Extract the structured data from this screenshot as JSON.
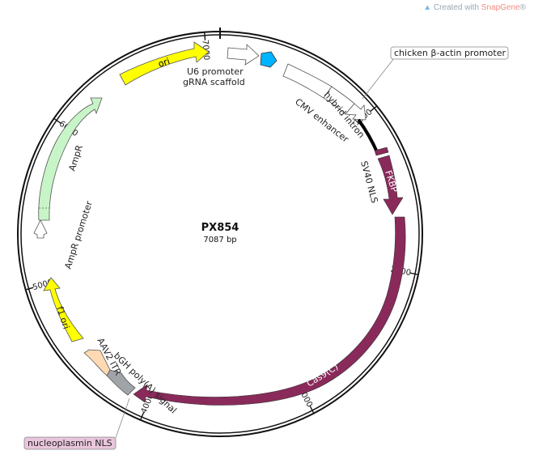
{
  "watermark": {
    "prefix": "Created with ",
    "brand": "SnapGene",
    "reg": "®"
  },
  "plasmid": {
    "name": "PX854",
    "length_label": "7087 bp",
    "length": 7087
  },
  "ticks": [
    {
      "pos": 1000,
      "label": "1000"
    },
    {
      "pos": 2000,
      "label": "2000"
    },
    {
      "pos": 3000,
      "label": "3000"
    },
    {
      "pos": 4000,
      "label": "4000"
    },
    {
      "pos": 5000,
      "label": "5000"
    },
    {
      "pos": 6000,
      "label": "6000"
    },
    {
      "pos": 7000,
      "label": "7000"
    }
  ],
  "features": {
    "ori": {
      "label": "ori",
      "start": 6320,
      "end": 6920,
      "color": "#ffff00"
    },
    "u6": {
      "label": "U6 promoter",
      "start": 100,
      "end": 345,
      "color": "#ffffff"
    },
    "grna": {
      "label": "gRNA scaffold",
      "start": 350,
      "end": 430,
      "color": "#00b4ff"
    },
    "cmv": {
      "label": "CMV enhancer",
      "start": 520,
      "end": 880,
      "color": "#ffffff"
    },
    "cba": {
      "label": "chicken β-actin promoter",
      "start": 880,
      "end": 1010,
      "color": "#ffffff"
    },
    "intron": {
      "label": "hybrid intron",
      "start": 1010,
      "end": 1240,
      "color": "#000000"
    },
    "sv40": {
      "label": "SV40 NLS",
      "start": 1290,
      "end": 1330,
      "color": "#8a2a5a"
    },
    "fkbp": {
      "label": "FKBP",
      "start": 1340,
      "end": 1660,
      "color": "#8a2a5a"
    },
    "cas9": {
      "label": "Cas9(C)",
      "start": 1700,
      "end": 3880,
      "color": "#8a2a5a"
    },
    "nls2": {
      "label": "nucleoplasmin NLS",
      "start": 3880,
      "end": 3930,
      "color": "#8a2a5a"
    },
    "bgh": {
      "label": "bGH poly(A) signal",
      "start": 3950,
      "end": 4180,
      "color": "#a0a4a8"
    },
    "itr": {
      "label": "AAV2 ITR",
      "start": 4190,
      "end": 4330,
      "color": "#ffd9b3"
    },
    "f1": {
      "label": "f1 ori",
      "start": 4560,
      "end": 4990,
      "color": "#ffff00"
    },
    "ampr_prom": {
      "label": "AmpR promoter",
      "start": 5290,
      "end": 5390,
      "color": "#ffffff"
    },
    "ampr": {
      "label": "AmpR",
      "start": 5390,
      "end": 6240,
      "color": "#c8f5c8"
    }
  }
}
